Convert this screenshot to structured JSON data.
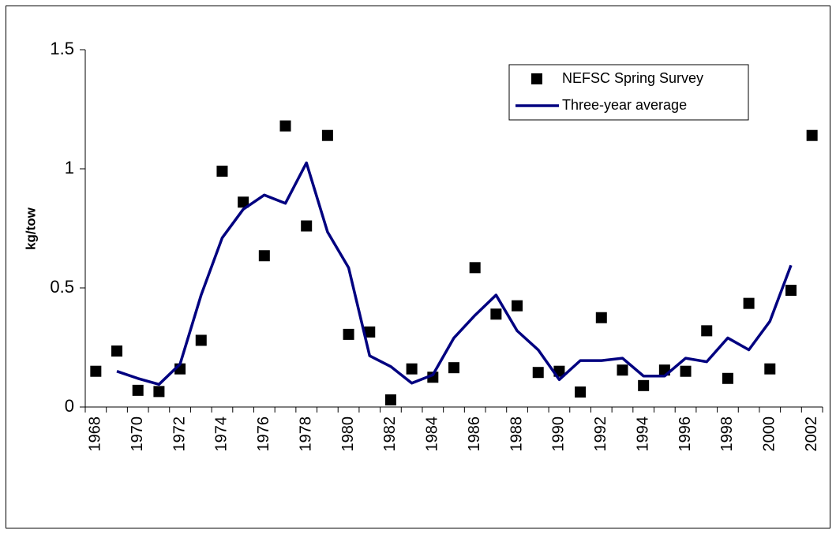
{
  "chart_data": {
    "type": "line",
    "y_label": "kg/tow",
    "categories": [
      "1968",
      null,
      "1970",
      null,
      "1972",
      null,
      "1974",
      null,
      "1976",
      null,
      "1978",
      null,
      "1980",
      null,
      "1982",
      null,
      "1984",
      null,
      "1986",
      null,
      "1988",
      null,
      "1990",
      null,
      "1992",
      null,
      "1994",
      null,
      "1996",
      null,
      "1998",
      null,
      "2000",
      null,
      "2002"
    ],
    "series": [
      {
        "name": "NEFSC Spring Survey",
        "kind": "marker",
        "color": "#000000",
        "values": [
          0.15,
          0.235,
          0.07,
          0.065,
          0.16,
          0.28,
          0.99,
          0.86,
          0.635,
          1.18,
          0.76,
          1.14,
          0.305,
          0.315,
          0.03,
          0.16,
          0.125,
          0.165,
          0.585,
          0.39,
          0.425,
          0.145,
          0.15,
          0.063,
          0.375,
          0.155,
          0.09,
          0.155,
          0.15,
          0.32,
          0.12,
          0.435,
          0.16,
          0.49,
          1.14
        ]
      },
      {
        "name": "Three-year average",
        "kind": "line",
        "color": "#000080",
        "values": [
          null,
          0.15,
          0.12,
          0.095,
          0.18,
          0.47,
          0.71,
          0.83,
          0.89,
          0.855,
          1.025,
          0.735,
          0.585,
          0.215,
          0.17,
          0.1,
          0.135,
          0.29,
          0.385,
          0.47,
          0.32,
          0.24,
          0.115,
          0.195,
          0.195,
          0.205,
          0.13,
          0.13,
          0.205,
          0.19,
          0.29,
          0.24,
          0.36,
          0.595,
          null
        ]
      }
    ],
    "ylim": [
      0,
      1.5
    ],
    "yticks": [
      0,
      0.5,
      1,
      1.5
    ],
    "grid": false,
    "legend": "upper right"
  }
}
